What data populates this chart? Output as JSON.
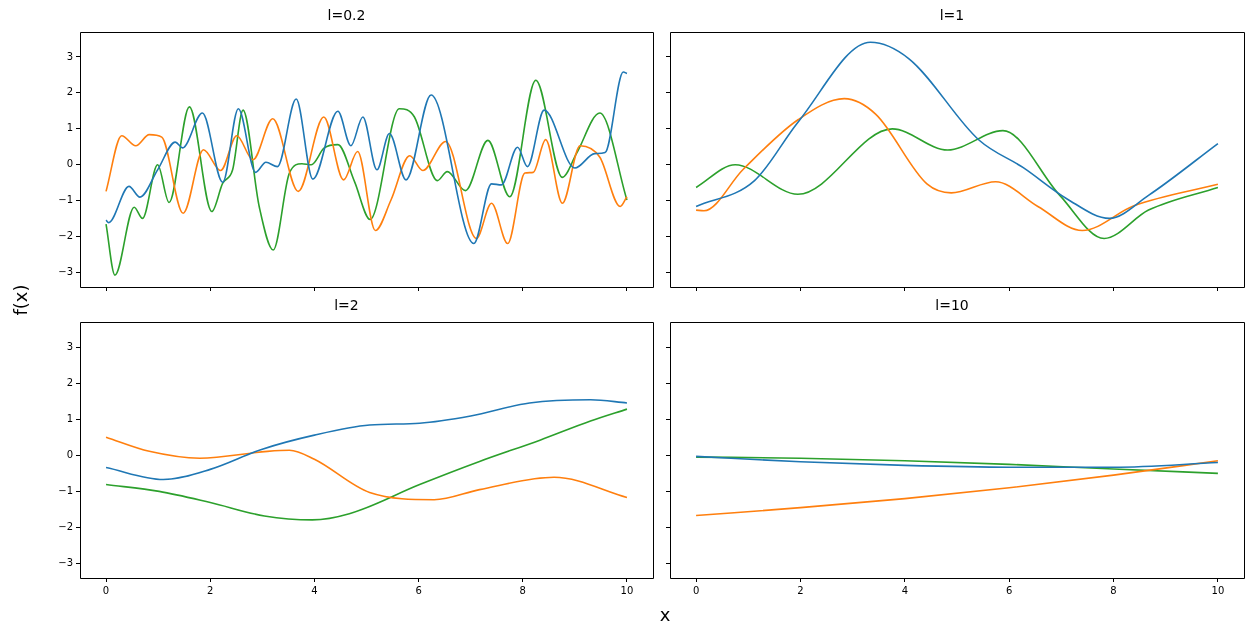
{
  "chart_data": [
    {
      "type": "line",
      "title": "l=0.2",
      "ylabel": "f(x)",
      "xlim": [
        -0.5,
        10.5
      ],
      "xticks": [
        0,
        2,
        4,
        6,
        8,
        10
      ],
      "ylim": [
        -3.4,
        3.7
      ],
      "yticks": [
        -3,
        -2,
        -1,
        0,
        1,
        2,
        3
      ],
      "tick_labels": "y",
      "grid": false,
      "legend": false,
      "series": [
        {
          "color": "#1f77b4",
          "x": [
            0,
            0.05,
            0.44,
            0.65,
            0.99,
            1.33,
            1.47,
            1.85,
            2.24,
            2.54,
            2.87,
            3.07,
            3.29,
            3.65,
            3.97,
            4.45,
            4.7,
            4.93,
            5.2,
            5.44,
            5.76,
            6.24,
            7.06,
            7.4,
            7.59,
            7.9,
            8.09,
            8.41,
            9.0,
            9.38,
            9.58,
            9.93,
            10
          ],
          "values": [
            -1.54,
            -1.61,
            -0.6,
            -0.9,
            -0.14,
            0.63,
            0.47,
            1.44,
            -0.49,
            1.56,
            -0.21,
            0.07,
            -0.05,
            1.83,
            -0.4,
            1.49,
            0.53,
            1.33,
            -0.14,
            0.87,
            -0.42,
            1.94,
            -2.19,
            -0.53,
            -0.56,
            0.49,
            -0.05,
            1.52,
            -0.09,
            0.31,
            0.34,
            2.58,
            2.54
          ]
        },
        {
          "color": "#ff7f0e",
          "x": [
            0,
            0.3,
            0.57,
            0.83,
            1.07,
            1.48,
            1.87,
            2.2,
            2.51,
            2.82,
            3.2,
            3.69,
            4.18,
            4.56,
            4.83,
            5.17,
            5.47,
            5.83,
            6.08,
            6.52,
            7.11,
            7.4,
            7.71,
            8.04,
            8.2,
            8.44,
            8.76,
            9.1,
            9.48,
            9.87,
            10
          ],
          "values": [
            -0.74,
            0.81,
            0.53,
            0.84,
            0.77,
            -1.35,
            0.42,
            -0.16,
            0.81,
            0.14,
            1.28,
            -0.74,
            1.33,
            -0.42,
            0.37,
            -1.83,
            -0.98,
            0.25,
            -0.16,
            0.65,
            -2.05,
            -1.07,
            -2.19,
            -0.23,
            -0.21,
            0.7,
            -1.07,
            0.53,
            0.21,
            -1.16,
            -0.89
          ]
        },
        {
          "color": "#2ca02c",
          "x": [
            0,
            0.17,
            0.54,
            0.7,
            0.99,
            1.21,
            1.6,
            2.03,
            2.24,
            2.43,
            2.63,
            2.94,
            3.21,
            3.52,
            3.76,
            3.94,
            4.19,
            4.45,
            4.77,
            5.07,
            5.63,
            5.92,
            6.36,
            6.55,
            6.9,
            7.33,
            7.75,
            8.25,
            8.76,
            9.03,
            9.48,
            10
          ],
          "values": [
            -1.65,
            -3.07,
            -1.18,
            -1.49,
            0.0,
            -1.05,
            1.61,
            -1.3,
            -0.51,
            -0.14,
            1.52,
            -1.16,
            -2.37,
            -0.23,
            0.03,
            0.0,
            0.47,
            0.56,
            -0.47,
            -1.52,
            1.56,
            1.33,
            -0.44,
            -0.19,
            -0.72,
            0.68,
            -0.89,
            2.35,
            -0.35,
            0.31,
            1.44,
            -0.98
          ]
        }
      ]
    },
    {
      "type": "line",
      "title": "l=1",
      "xlim": [
        -0.5,
        10.5
      ],
      "xticks": [
        0,
        2,
        4,
        6,
        8,
        10
      ],
      "ylim": [
        -3.4,
        3.7
      ],
      "yticks": [
        -3,
        -2,
        -1,
        0,
        1,
        2,
        3
      ],
      "tick_labels": false,
      "grid": false,
      "legend": false,
      "series": [
        {
          "color": "#1f77b4",
          "x": [
            0,
            1.12,
            1.96,
            3.34,
            4.08,
            5.42,
            6.27,
            7.11,
            7.92,
            8.67,
            10
          ],
          "values": [
            -1.16,
            -0.44,
            1.2,
            3.41,
            2.95,
            0.69,
            -0.08,
            -0.95,
            -1.49,
            -0.85,
            0.59
          ]
        },
        {
          "color": "#ff7f0e",
          "x": [
            0,
            0.15,
            0.9,
            1.96,
            2.84,
            3.44,
            4.43,
            4.89,
            5.74,
            6.55,
            7.4,
            8.39,
            10
          ],
          "values": [
            -1.26,
            -1.28,
            -0.13,
            1.26,
            1.84,
            1.41,
            -0.54,
            -0.78,
            -0.47,
            -1.16,
            -1.83,
            -1.14,
            -0.54
          ]
        },
        {
          "color": "#2ca02c",
          "x": [
            0,
            0.75,
            1.95,
            3.76,
            4.82,
            5.88,
            6.97,
            7.82,
            8.67,
            10
          ],
          "values": [
            -0.63,
            0.0,
            -0.82,
            1.0,
            0.41,
            0.95,
            -0.85,
            -2.05,
            -1.26,
            -0.63
          ]
        }
      ]
    },
    {
      "type": "line",
      "title": "l=2",
      "xlabel": "x",
      "xlim": [
        -0.5,
        10.5
      ],
      "xticks": [
        0,
        2,
        4,
        6,
        8,
        10
      ],
      "ylim": [
        -3.4,
        3.7
      ],
      "yticks": [
        -3,
        -2,
        -1,
        0,
        1,
        2,
        3
      ],
      "grid": false,
      "legend": false,
      "series": [
        {
          "color": "#1f77b4",
          "x": [
            0,
            1.1,
            2,
            3,
            4,
            5.06,
            6.02,
            7,
            8.13,
            9.3,
            10
          ],
          "values": [
            -0.34,
            -0.67,
            -0.39,
            0.17,
            0.56,
            0.84,
            0.89,
            1.09,
            1.45,
            1.54,
            1.45
          ]
        },
        {
          "color": "#ff7f0e",
          "x": [
            0,
            0.83,
            1.8,
            3.1,
            3.52,
            4,
            5.06,
            6.3,
            7.17,
            8.6,
            10
          ],
          "values": [
            0.5,
            0.11,
            -0.08,
            0.11,
            0.14,
            -0.11,
            -1.03,
            -1.23,
            -0.95,
            -0.61,
            -1.17
          ]
        },
        {
          "color": "#2ca02c",
          "x": [
            0,
            1.02,
            2,
            3.04,
            3.96,
            4.67,
            6.02,
            7.17,
            8.33,
            9.3,
            10
          ],
          "values": [
            -0.81,
            -1.0,
            -1.31,
            -1.68,
            -1.79,
            -1.62,
            -0.81,
            -0.17,
            0.42,
            0.95,
            1.28
          ]
        }
      ]
    },
    {
      "type": "line",
      "title": "l=10",
      "xlim": [
        -0.5,
        10.5
      ],
      "xticks": [
        0,
        2,
        4,
        6,
        8,
        10
      ],
      "ylim": [
        -3.4,
        3.7
      ],
      "yticks": [
        -3,
        -2,
        -1,
        0,
        1,
        2,
        3
      ],
      "tick_labels": "x",
      "grid": false,
      "legend": false,
      "series": [
        {
          "color": "#1f77b4",
          "x": [
            0,
            2,
            4,
            6,
            8,
            10
          ],
          "values": [
            -0.03,
            -0.18,
            -0.28,
            -0.33,
            -0.33,
            -0.2
          ]
        },
        {
          "color": "#ff7f0e",
          "x": [
            0,
            2,
            4,
            6,
            8,
            10
          ],
          "values": [
            -1.67,
            -1.45,
            -1.2,
            -0.9,
            -0.55,
            -0.15
          ]
        },
        {
          "color": "#2ca02c",
          "x": [
            0,
            2,
            4,
            6,
            8,
            10
          ],
          "values": [
            -0.05,
            -0.08,
            -0.15,
            -0.25,
            -0.38,
            -0.5
          ]
        }
      ]
    }
  ]
}
